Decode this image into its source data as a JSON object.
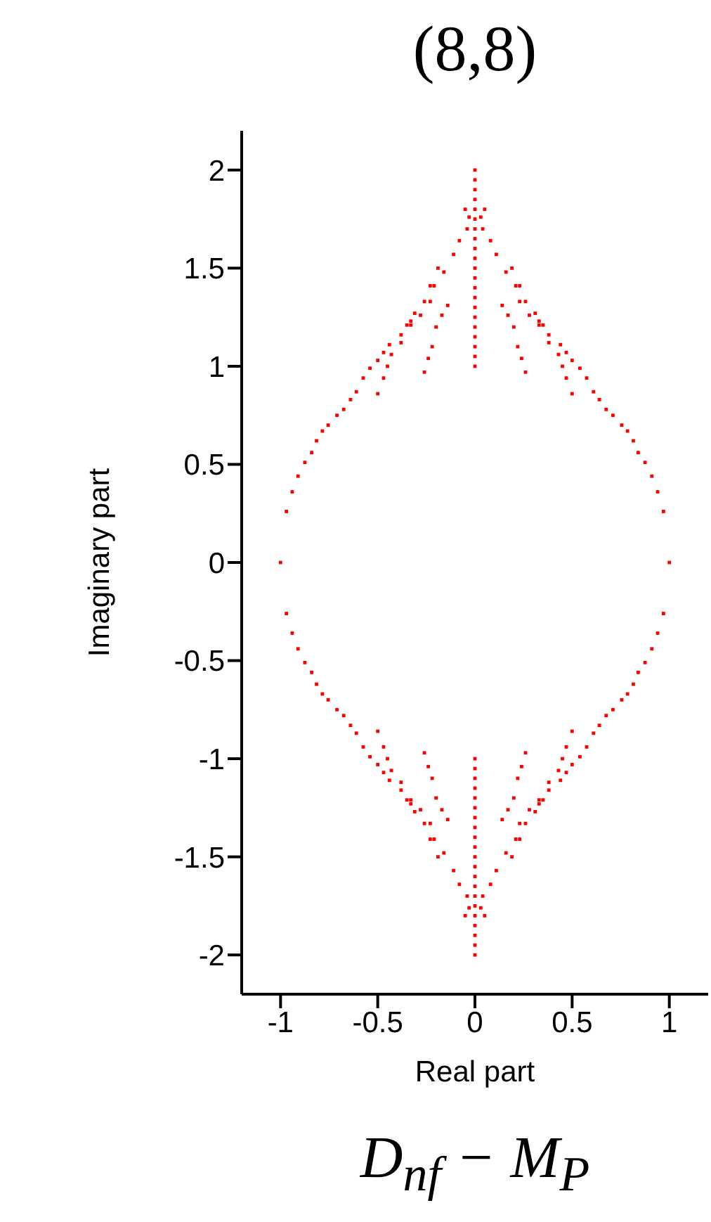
{
  "chart_data": {
    "type": "scatter",
    "title": "(8,8)",
    "xlabel": "Real part",
    "ylabel": "Imaginary part",
    "annotations": [
      "D$_{nf}$ − M$_{P}$"
    ],
    "xlim": [
      -1.2,
      1.2
    ],
    "ylim": [
      -2.2,
      2.2
    ],
    "xticks": [
      -1,
      -0.5,
      0,
      0.5,
      1
    ],
    "yticks": [
      -2,
      -1.5,
      -1,
      -0.5,
      0,
      0.5,
      1,
      1.5,
      2
    ],
    "grid": false,
    "legend": false,
    "marker": "square",
    "series": [
      {
        "color": "#ff0000",
        "x": [
          1,
          -1,
          0.97,
          0.94,
          0.91,
          0.875,
          0.84,
          0.815,
          0.785,
          0.755,
          0.71,
          0.675,
          0.64,
          0.61,
          0.575,
          0.54,
          0.5,
          0.47,
          0.44,
          0.38,
          0.35,
          0.31,
          0.26,
          0.21,
          0.16,
          0.11,
          0.08,
          0.04,
          0.26,
          0.24,
          0.22,
          0.2,
          0.17,
          0.14,
          0.5,
          0.47,
          0.45,
          0.43,
          0.38,
          0.33,
          0.28,
          0.23,
          0.33,
          0.23,
          0.19,
          0.03,
          0.05,
          -0.97,
          -0.94,
          -0.91,
          -0.875,
          -0.84,
          -0.815,
          -0.785,
          -0.755,
          -0.71,
          -0.675,
          -0.64,
          -0.61,
          -0.575,
          -0.54,
          -0.5,
          -0.47,
          -0.44,
          -0.38,
          -0.35,
          -0.31,
          -0.26,
          -0.21,
          -0.16,
          -0.11,
          -0.08,
          -0.04,
          -0.26,
          -0.24,
          -0.22,
          -0.2,
          -0.17,
          -0.14,
          -0.5,
          -0.47,
          -0.45,
          -0.43,
          -0.38,
          -0.33,
          -0.28,
          -0.23,
          -0.33,
          -0.23,
          -0.19,
          -0.03,
          -0.05,
          0.97,
          0.94,
          0.91,
          0.875,
          0.84,
          0.815,
          0.785,
          0.755,
          0.71,
          0.675,
          0.64,
          0.61,
          0.575,
          0.54,
          0.5,
          0.47,
          0.44,
          0.38,
          0.35,
          0.31,
          0.26,
          0.21,
          0.16,
          0.11,
          0.08,
          0.04,
          0.26,
          0.24,
          0.22,
          0.2,
          0.17,
          0.14,
          0.5,
          0.47,
          0.45,
          0.43,
          0.38,
          0.33,
          0.28,
          0.23,
          0.33,
          0.23,
          0.19,
          0.03,
          0.05,
          -0.97,
          -0.94,
          -0.91,
          -0.875,
          -0.84,
          -0.815,
          -0.785,
          -0.755,
          -0.71,
          -0.675,
          -0.64,
          -0.61,
          -0.575,
          -0.54,
          -0.5,
          -0.47,
          -0.44,
          -0.38,
          -0.35,
          -0.31,
          -0.26,
          -0.21,
          -0.16,
          -0.11,
          -0.08,
          -0.04,
          -0.26,
          -0.24,
          -0.22,
          -0.2,
          -0.17,
          -0.14,
          -0.5,
          -0.47,
          -0.45,
          -0.43,
          -0.38,
          -0.33,
          -0.28,
          -0.23,
          -0.33,
          -0.23,
          -0.19,
          -0.03,
          -0.05,
          0,
          0,
          0,
          0,
          0,
          0,
          0,
          0,
          0,
          0,
          0,
          0,
          0,
          0,
          0,
          0,
          0,
          0,
          0,
          0,
          0,
          0,
          0,
          0,
          0,
          0,
          0,
          0,
          0,
          0,
          0,
          0,
          0,
          0,
          0,
          0,
          0,
          0,
          0,
          0,
          0,
          0
        ],
        "values": [
          0,
          0,
          0.26,
          0.36,
          0.44,
          0.51,
          0.56,
          0.62,
          0.67,
          0.7,
          0.75,
          0.78,
          0.83,
          0.87,
          0.94,
          0.99,
          1.03,
          1.07,
          1.11,
          1.16,
          1.21,
          1.27,
          1.33,
          1.41,
          1.48,
          1.57,
          1.64,
          1.7,
          0.97,
          1.04,
          1.1,
          1.2,
          1.26,
          1.31,
          0.86,
          0.94,
          1,
          1.06,
          1.12,
          1.21,
          1.26,
          1.33,
          1.23,
          1.41,
          1.5,
          1.76,
          1.8,
          0.26,
          0.36,
          0.44,
          0.51,
          0.56,
          0.62,
          0.67,
          0.7,
          0.75,
          0.78,
          0.83,
          0.87,
          0.94,
          0.99,
          1.03,
          1.07,
          1.11,
          1.16,
          1.21,
          1.27,
          1.33,
          1.41,
          1.48,
          1.57,
          1.64,
          1.7,
          0.97,
          1.04,
          1.1,
          1.2,
          1.26,
          1.31,
          0.86,
          0.94,
          1,
          1.06,
          1.12,
          1.21,
          1.26,
          1.33,
          1.23,
          1.41,
          1.5,
          1.76,
          1.8,
          -0.26,
          -0.36,
          -0.44,
          -0.51,
          -0.56,
          -0.62,
          -0.67,
          -0.7,
          -0.75,
          -0.78,
          -0.83,
          -0.87,
          -0.94,
          -0.99,
          -1.03,
          -1.07,
          -1.11,
          -1.16,
          -1.21,
          -1.27,
          -1.33,
          -1.41,
          -1.48,
          -1.57,
          -1.64,
          -1.7,
          -0.97,
          -1.04,
          -1.1,
          -1.2,
          -1.26,
          -1.31,
          -0.86,
          -0.94,
          -1,
          -1.06,
          -1.12,
          -1.21,
          -1.26,
          -1.33,
          -1.23,
          -1.41,
          -1.5,
          -1.76,
          -1.8,
          -0.26,
          -0.36,
          -0.44,
          -0.51,
          -0.56,
          -0.62,
          -0.67,
          -0.7,
          -0.75,
          -0.78,
          -0.83,
          -0.87,
          -0.94,
          -0.99,
          -1.03,
          -1.07,
          -1.11,
          -1.16,
          -1.21,
          -1.27,
          -1.33,
          -1.41,
          -1.48,
          -1.57,
          -1.64,
          -1.7,
          -0.97,
          -1.04,
          -1.1,
          -1.2,
          -1.26,
          -1.31,
          -0.86,
          -0.94,
          -1,
          -1.06,
          -1.12,
          -1.21,
          -1.26,
          -1.33,
          -1.23,
          -1.41,
          -1.5,
          -1.76,
          -1.8,
          1,
          1.05,
          1.1,
          1.15,
          1.2,
          1.25,
          1.3,
          1.35,
          1.4,
          1.45,
          1.5,
          1.55,
          1.6,
          1.65,
          1.7,
          1.75,
          1.8,
          1.85,
          1.9,
          1.95,
          2,
          -1,
          -1.05,
          -1.1,
          -1.15,
          -1.2,
          -1.25,
          -1.3,
          -1.35,
          -1.4,
          -1.45,
          -1.5,
          -1.55,
          -1.6,
          -1.65,
          -1.7,
          -1.75,
          -1.8,
          -1.85,
          -1.9,
          -1.95,
          -2
        ]
      }
    ]
  }
}
